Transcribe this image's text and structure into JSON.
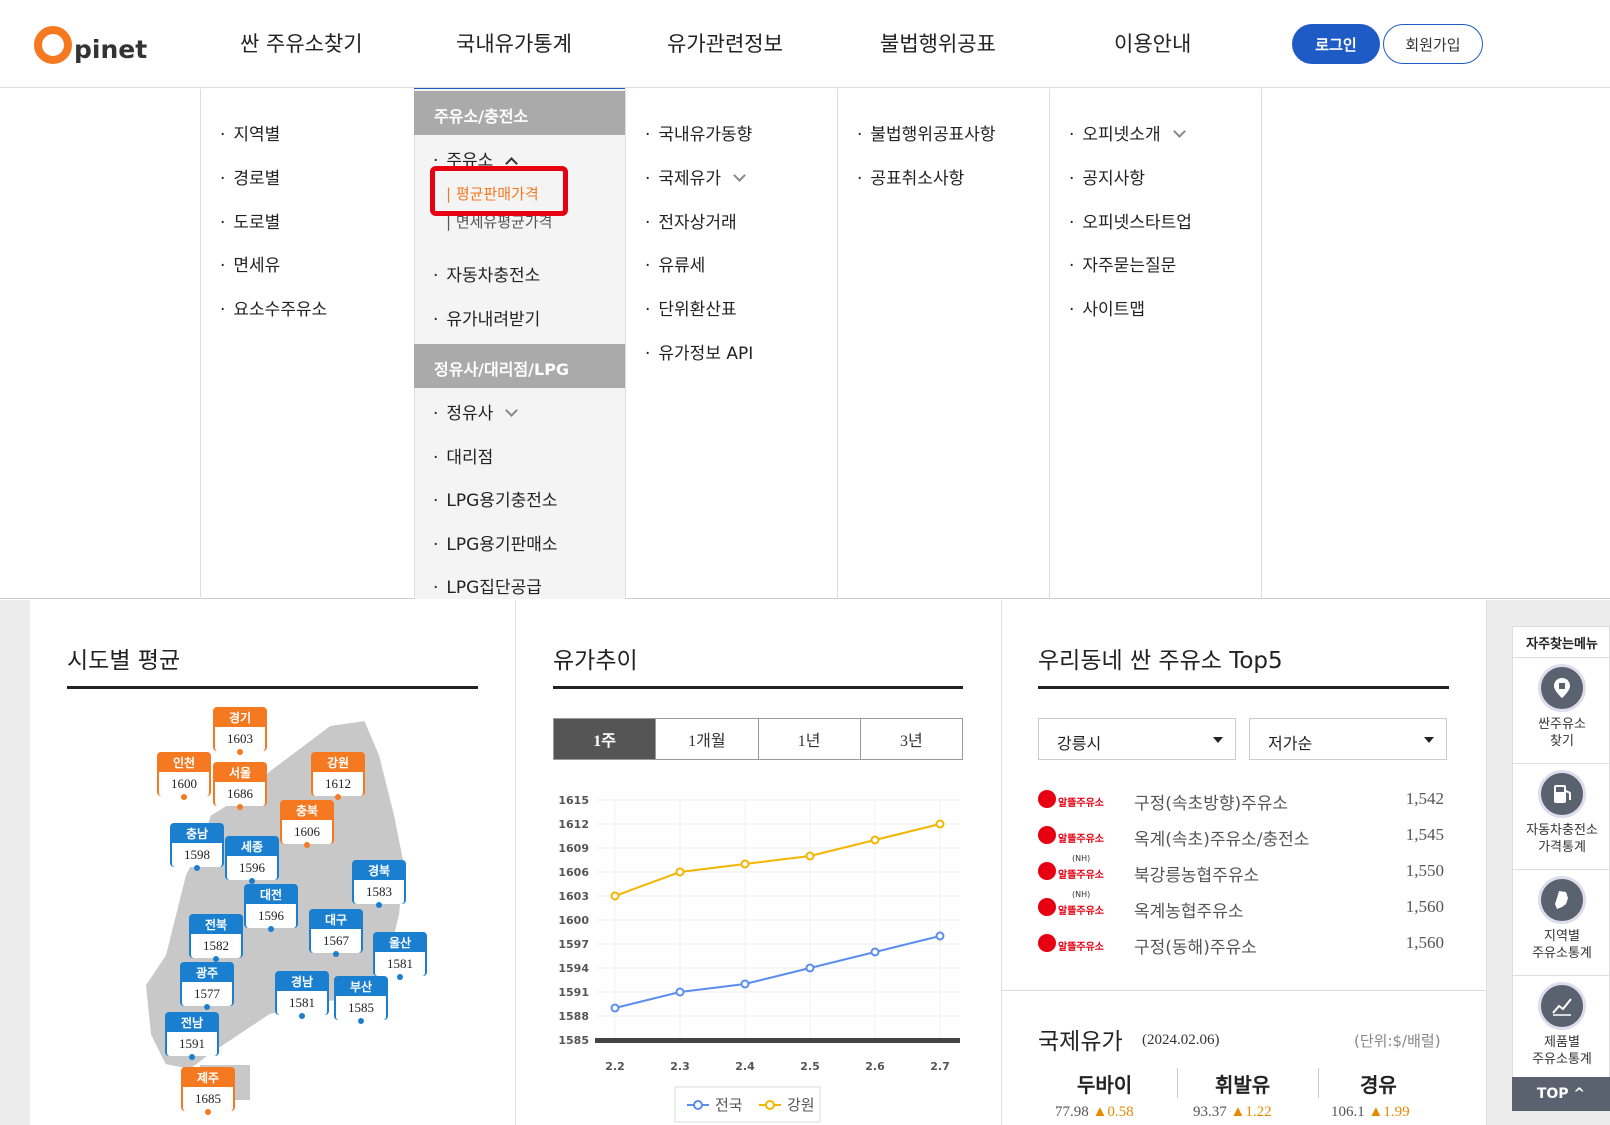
{
  "header": {
    "logo_o": "O",
    "logo_text": "pinet",
    "nav": [
      "싼 주유소찾기",
      "국내유가통계",
      "유가관련정보",
      "불법행위공표",
      "이용안내"
    ],
    "login": "로그인",
    "join": "회원가입"
  },
  "menu": {
    "col1": [
      "지역별",
      "경로별",
      "도로별",
      "면세유",
      "요소수주유소"
    ],
    "col2_head1": "주유소/충전소",
    "col2_gas": "주유소",
    "col2_sub": [
      "평균판매가격",
      "면세유평균가격"
    ],
    "col2_items": [
      "자동차충전소",
      "유가내려받기"
    ],
    "col2_head2": "정유사/대리점/LPG",
    "col2_items2": [
      "정유사",
      "대리점",
      "LPG용기충전소",
      "LPG용기판매소",
      "LPG집단공급"
    ],
    "col3": [
      "국내유가동향",
      "국제유가",
      "전자상거래",
      "유류세",
      "단위환산표",
      "유가정보 API"
    ],
    "col4": [
      "불법행위공표사항",
      "공표취소사항"
    ],
    "col5": [
      "오피넷소개",
      "공지사항",
      "오피넷스타트업",
      "자주묻는질문",
      "사이트맵"
    ]
  },
  "sido": {
    "title": "시도별 평균",
    "regions": [
      {
        "name": "경기",
        "value": "1603",
        "color": "orange"
      },
      {
        "name": "인천",
        "value": "1600",
        "color": "orange"
      },
      {
        "name": "서울",
        "value": "1686",
        "color": "orange"
      },
      {
        "name": "강원",
        "value": "1612",
        "color": "orange"
      },
      {
        "name": "충북",
        "value": "1606",
        "color": "orange"
      },
      {
        "name": "충남",
        "value": "1598",
        "color": "blue"
      },
      {
        "name": "세종",
        "value": "1596",
        "color": "blue"
      },
      {
        "name": "경북",
        "value": "1583",
        "color": "blue"
      },
      {
        "name": "대전",
        "value": "1596",
        "color": "blue"
      },
      {
        "name": "전북",
        "value": "1582",
        "color": "blue"
      },
      {
        "name": "대구",
        "value": "1567",
        "color": "blue"
      },
      {
        "name": "울산",
        "value": "1581",
        "color": "blue"
      },
      {
        "name": "광주",
        "value": "1577",
        "color": "blue"
      },
      {
        "name": "경남",
        "value": "1581",
        "color": "blue"
      },
      {
        "name": "부산",
        "value": "1585",
        "color": "blue"
      },
      {
        "name": "전남",
        "value": "1591",
        "color": "blue"
      },
      {
        "name": "제주",
        "value": "1685",
        "color": "orange"
      }
    ]
  },
  "trend": {
    "title": "유가추이",
    "tabs": [
      "1주",
      "1개월",
      "1년",
      "3년"
    ],
    "active_tab": "1주"
  },
  "chart_data": {
    "type": "line",
    "x": [
      "2.2",
      "2.3",
      "2.4",
      "2.5",
      "2.6",
      "2.7"
    ],
    "ylim": [
      1585,
      1615
    ],
    "yticks": [
      "1615",
      "1612",
      "1609",
      "1606",
      "1603",
      "1600",
      "1597",
      "1594",
      "1591",
      "1588",
      "1585"
    ],
    "series": [
      {
        "name": "전국",
        "color": "#5b8def",
        "values": [
          1589,
          1591,
          1592,
          1594,
          1596,
          1598
        ]
      },
      {
        "name": "강원",
        "color": "#f5b400",
        "values": [
          1603,
          1606,
          1607,
          1608,
          1610,
          1612
        ]
      }
    ],
    "legend_position": "bottom"
  },
  "top5": {
    "title": "우리동네 싼 주유소 Top5",
    "city": "강릉시",
    "order": "저가순",
    "brand_label": "알뜰주유소",
    "nh_label": "(NH)",
    "stations": [
      {
        "name": "구정(속초방향)주유소",
        "price": "1,542",
        "nh": false
      },
      {
        "name": "옥계(속초)주유소/충전소",
        "price": "1,545",
        "nh": false
      },
      {
        "name": "북강릉농협주유소",
        "price": "1,550",
        "nh": true
      },
      {
        "name": "옥계농협주유소",
        "price": "1,560",
        "nh": true
      },
      {
        "name": "구정(동해)주유소",
        "price": "1,560",
        "nh": false
      }
    ]
  },
  "intl": {
    "title": "국제유가",
    "date": "(2024.02.06)",
    "unit": "(단위:$/배럴)",
    "items": [
      {
        "name": "두바이",
        "value": "77.98",
        "change": "▲0.58"
      },
      {
        "name": "휘발유",
        "value": "93.37",
        "change": "▲1.22"
      },
      {
        "name": "경유",
        "value": "106.1",
        "change": "▲1.99"
      }
    ]
  },
  "quick": {
    "title": "자주찾는메뉴",
    "items": [
      {
        "line1": "싼주유소",
        "line2": "찾기"
      },
      {
        "line1": "자동차충전소",
        "line2": "가격통계"
      },
      {
        "line1": "지역별",
        "line2": "주유소통계"
      },
      {
        "line1": "제품별",
        "line2": "주유소통계"
      }
    ],
    "top": "TOP"
  }
}
